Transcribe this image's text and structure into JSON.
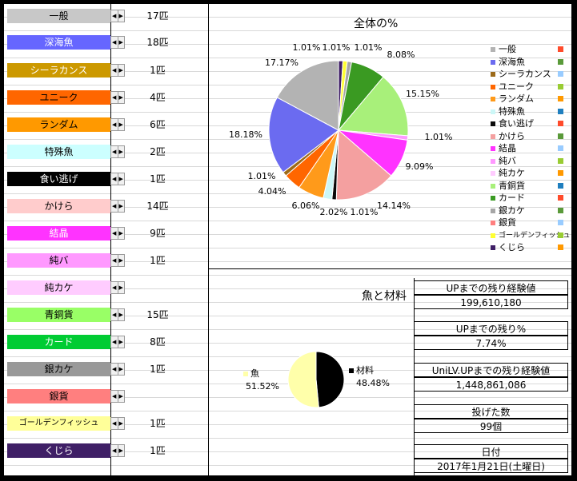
{
  "fish_list": [
    {
      "name": "一般",
      "count": "17匹",
      "bg": "#c8c8c8",
      "fg": "#000000"
    },
    {
      "name": "深海魚",
      "count": "18匹",
      "bg": "#6666ff",
      "fg": "#ffffff"
    },
    {
      "name": "シーラカンス",
      "count": "1匹",
      "bg": "#cc9900",
      "fg": "#ffffff"
    },
    {
      "name": "ユニーク",
      "count": "4匹",
      "bg": "#ff6600",
      "fg": "#000000"
    },
    {
      "name": "ランダム",
      "count": "6匹",
      "bg": "#ff9900",
      "fg": "#000000"
    },
    {
      "name": "特殊魚",
      "count": "2匹",
      "bg": "#ccffff",
      "fg": "#000000"
    },
    {
      "name": "食い逃げ",
      "count": "1匹",
      "bg": "#000000",
      "fg": "#ffffff"
    },
    {
      "name": "かけら",
      "count": "14匹",
      "bg": "#ffcccc",
      "fg": "#000000"
    },
    {
      "name": "結晶",
      "count": "9匹",
      "bg": "#ff33ff",
      "fg": "#ffffff"
    },
    {
      "name": "純バ",
      "count": "1匹",
      "bg": "#ff99ff",
      "fg": "#000000"
    },
    {
      "name": "純カケ",
      "count": "",
      "bg": "#ffccff",
      "fg": "#000000"
    },
    {
      "name": "青銅貨",
      "count": "15匹",
      "bg": "#99ff66",
      "fg": "#000000"
    },
    {
      "name": "カード",
      "count": "8匹",
      "bg": "#00cc33",
      "fg": "#ffffff"
    },
    {
      "name": "銀カケ",
      "count": "1匹",
      "bg": "#999999",
      "fg": "#000000"
    },
    {
      "name": "銀貨",
      "count": "",
      "bg": "#ff7f7f",
      "fg": "#000000"
    },
    {
      "name": "ゴールデンフィッシュ",
      "count": "1匹",
      "bg": "#ffff99",
      "fg": "#000000"
    },
    {
      "name": "くじら",
      "count": "1匹",
      "bg": "#3f1f66",
      "fg": "#ffffff"
    }
  ],
  "chart_data": [
    {
      "type": "pie",
      "title": "全体の%",
      "slices": [
        {
          "label": "一般",
          "value": 17.17,
          "color": "#b3b3b3",
          "legend_dot": "#ff4b2b"
        },
        {
          "label": "深海魚",
          "value": 18.18,
          "color": "#6b6bf0",
          "legend_dot": "#5a9a3a"
        },
        {
          "label": "シーラカンス",
          "value": 1.01,
          "color": "#9c6a1a",
          "legend_dot": "#99ccff"
        },
        {
          "label": "ユニーク",
          "value": 4.04,
          "color": "#ff6600",
          "legend_dot": "#99cc33"
        },
        {
          "label": "ランダム",
          "value": 6.06,
          "color": "#ff9a1a",
          "legend_dot": "#ff9900"
        },
        {
          "label": "特殊魚",
          "value": 2.02,
          "color": "#ccf7f7",
          "legend_dot": "#1f7fbf"
        },
        {
          "label": "食い逃げ",
          "value": 1.01,
          "color": "#0a0a0a",
          "legend_dot": "#ff4b2b"
        },
        {
          "label": "かけら",
          "value": 14.14,
          "color": "#f4a0a0",
          "legend_dot": "#5a9a3a"
        },
        {
          "label": "結晶",
          "value": 9.09,
          "color": "#ff33ff",
          "legend_dot": "#99ccff"
        },
        {
          "label": "純バ",
          "value": 1.01,
          "color": "#ff99ff",
          "legend_dot": "#99cc33"
        },
        {
          "label": "純カケ",
          "value": 0,
          "color": "#ffccff",
          "legend_dot": "#ff9900"
        },
        {
          "label": "青銅貨",
          "value": 15.15,
          "color": "#a8f07a",
          "legend_dot": "#1f7fbf"
        },
        {
          "label": "カード",
          "value": 8.08,
          "color": "#3a9a22",
          "legend_dot": "#ff4b2b"
        },
        {
          "label": "銀カケ",
          "value": 1.01,
          "color": "#a6a6a6",
          "legend_dot": "#5a9a3a"
        },
        {
          "label": "銀貨",
          "value": 0,
          "color": "#ff7f7f",
          "legend_dot": "#99ccff"
        },
        {
          "label": "ゴールデンフィッシュ",
          "value": 1.01,
          "color": "#ffff33",
          "legend_dot": "#99cc33"
        },
        {
          "label": "くじら",
          "value": 1.01,
          "color": "#3f1f66",
          "legend_dot": "#ff9900"
        }
      ],
      "labels": [
        {
          "text": "1.01%"
        },
        {
          "text": "1.01%"
        },
        {
          "text": "1.01%"
        },
        {
          "text": "8.08%"
        },
        {
          "text": "17.17%"
        },
        {
          "text": "15.15%"
        },
        {
          "text": "1.01%"
        },
        {
          "text": "18.18%"
        },
        {
          "text": "9.09%"
        },
        {
          "text": "1.01%"
        },
        {
          "text": "4.04%"
        },
        {
          "text": "14.14%"
        },
        {
          "text": "6.06%"
        },
        {
          "text": "2.02%"
        },
        {
          "text": "1.01%"
        }
      ]
    },
    {
      "type": "pie",
      "title": "魚と材料",
      "slices": [
        {
          "label": "材料",
          "value": 48.48,
          "color": "#000000"
        },
        {
          "label": "魚",
          "value": 51.52,
          "color": "#ffffaa"
        }
      ],
      "labels": [
        {
          "text": "魚"
        },
        {
          "text": "51.52%"
        },
        {
          "text": "材料"
        },
        {
          "text": "48.48%"
        }
      ]
    }
  ],
  "legend_labels": [
    "一般",
    "深海魚",
    "シーラカンス",
    "ユニーク",
    "ランダム",
    "特殊魚",
    "食い逃げ",
    "かけら",
    "結晶",
    "純バ",
    "純カケ",
    "青銅貨",
    "カード",
    "銀カケ",
    "銀貨",
    "ゴールデンフィッシュ",
    "くじら"
  ],
  "info": {
    "exp_label": "UPまでの残り経験値",
    "exp_value": "199,610,180",
    "pct_label": "UPまでの残り%",
    "pct_value": "7.74%",
    "unilv_label": "UniLV.UPまでの残り経験値",
    "unilv_value": "1,448,861,086",
    "casts_label": "投げた数",
    "casts_value": "99個",
    "date_label": "日付",
    "date_value": "2017年1月21日(土曜日)"
  }
}
